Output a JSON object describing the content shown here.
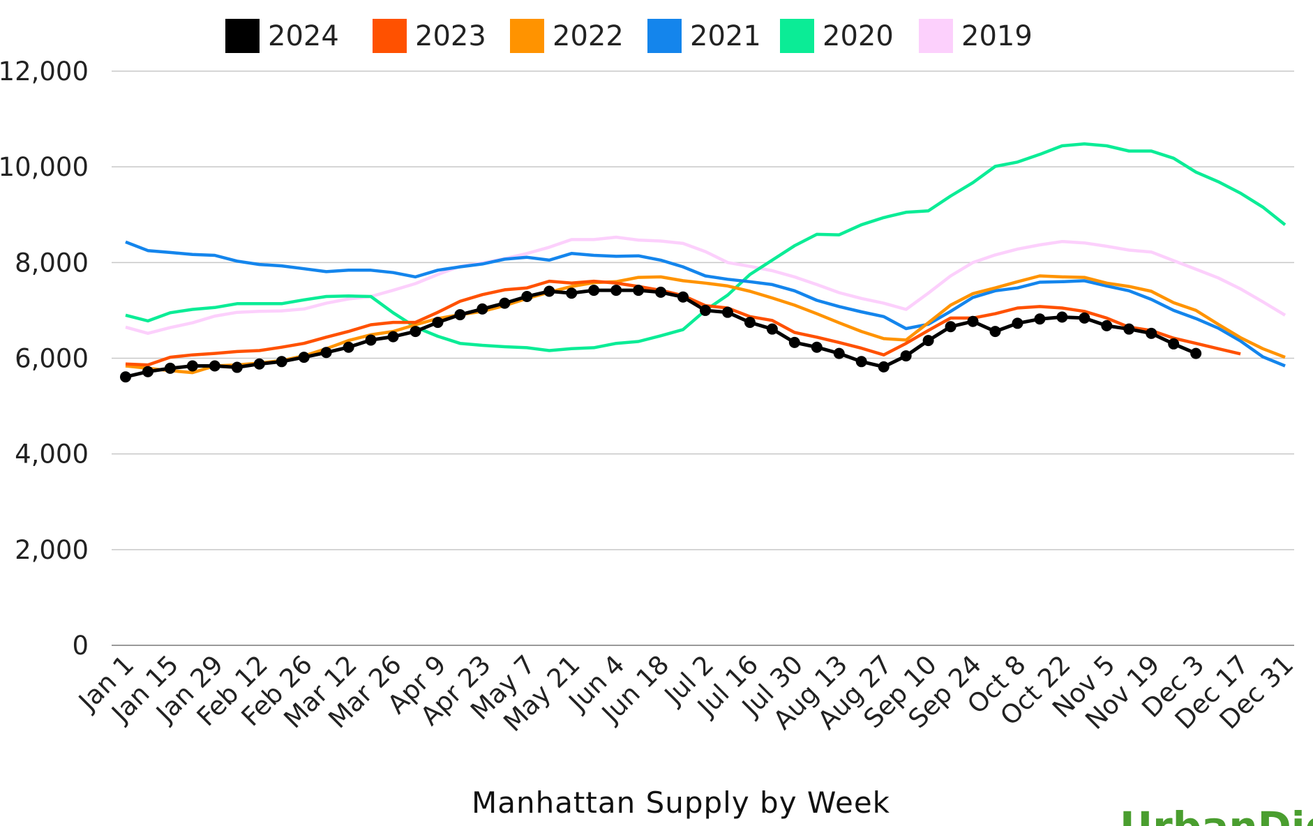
{
  "chart_data": {
    "type": "line",
    "title": "Manhattan Supply by Week",
    "xlabel": "",
    "ylabel": "",
    "ylim": [
      0,
      12000
    ],
    "yticks": [
      0,
      2000,
      4000,
      6000,
      8000,
      10000,
      12000
    ],
    "ytick_labels": [
      "0",
      "2,000",
      "4,000",
      "6,000",
      "8,000",
      "10,000",
      "12,000"
    ],
    "grid": "horizontal",
    "legend_position": "top",
    "x_tick_labels": [
      "Jan 1",
      "Jan 15",
      "Jan 29",
      "Feb 12",
      "Feb 26",
      "Mar 12",
      "Mar 26",
      "Apr 9",
      "Apr 23",
      "May 7",
      "May 21",
      "Jun 4",
      "Jun 18",
      "Jul 2",
      "Jul 16",
      "Jul 30",
      "Aug 13",
      "Aug 27",
      "Sep 10",
      "Sep 24",
      "Oct 8",
      "Oct 22",
      "Nov 5",
      "Nov 19",
      "Dec 3",
      "Dec 17",
      "Dec 31"
    ],
    "x_note_weekly": "weekly points starting Jan 1",
    "series": [
      {
        "name": "2019",
        "color": "#fcd0fc",
        "markers": false,
        "values": [
          6650,
          6520,
          6640,
          6740,
          6880,
          6960,
          6980,
          6990,
          7030,
          7150,
          7240,
          7290,
          7420,
          7560,
          7750,
          7920,
          7990,
          8080,
          8190,
          8320,
          8480,
          8480,
          8530,
          8470,
          8450,
          8400,
          8230,
          8000,
          7920,
          7830,
          7700,
          7540,
          7370,
          7250,
          7150,
          7020,
          7360,
          7720,
          8000,
          8160,
          8280,
          8370,
          8440,
          8410,
          8340,
          8260,
          8220,
          8040,
          7860,
          7680,
          7450,
          7180,
          6900
        ]
      },
      {
        "name": "2020",
        "color": "#0bec96",
        "markers": false,
        "values": [
          6900,
          6780,
          6950,
          7020,
          7060,
          7140,
          7140,
          7140,
          7220,
          7290,
          7300,
          7290,
          6950,
          6650,
          6460,
          6310,
          6270,
          6240,
          6220,
          6160,
          6200,
          6220,
          6310,
          6350,
          6470,
          6600,
          7000,
          7320,
          7750,
          8050,
          8350,
          8590,
          8580,
          8790,
          8940,
          9050,
          9080,
          9390,
          9670,
          10010,
          10100,
          10260,
          10440,
          10480,
          10440,
          10330,
          10330,
          10180,
          9890,
          9690,
          9450,
          9160,
          8790
        ]
      },
      {
        "name": "2021",
        "color": "#1485ec",
        "markers": false,
        "values": [
          8430,
          8250,
          8210,
          8170,
          8150,
          8030,
          7960,
          7930,
          7870,
          7810,
          7840,
          7840,
          7790,
          7700,
          7840,
          7910,
          7970,
          8070,
          8110,
          8050,
          8190,
          8150,
          8130,
          8140,
          8050,
          7910,
          7720,
          7650,
          7600,
          7540,
          7410,
          7210,
          7080,
          6970,
          6870,
          6620,
          6710,
          6980,
          7270,
          7410,
          7470,
          7590,
          7600,
          7620,
          7510,
          7410,
          7230,
          7000,
          6830,
          6630,
          6360,
          6030,
          5840
        ]
      },
      {
        "name": "2022",
        "color": "#ff9300",
        "markers": false,
        "values": [
          5840,
          5790,
          5740,
          5700,
          5840,
          5860,
          5900,
          5950,
          6050,
          6200,
          6370,
          6490,
          6560,
          6700,
          6830,
          6910,
          6980,
          7100,
          7250,
          7380,
          7500,
          7580,
          7600,
          7690,
          7700,
          7620,
          7570,
          7510,
          7400,
          7260,
          7110,
          6930,
          6740,
          6560,
          6410,
          6380,
          6740,
          7110,
          7350,
          7470,
          7600,
          7720,
          7700,
          7690,
          7570,
          7500,
          7400,
          7160,
          7000,
          6710,
          6430,
          6200,
          6020
        ]
      },
      {
        "name": "2023",
        "color": "#ff5100",
        "markers": false,
        "values": [
          5880,
          5860,
          6020,
          6070,
          6100,
          6140,
          6160,
          6230,
          6310,
          6440,
          6560,
          6700,
          6750,
          6750,
          6960,
          7190,
          7330,
          7430,
          7470,
          7610,
          7570,
          7610,
          7570,
          7500,
          7420,
          7310,
          7100,
          7050,
          6870,
          6790,
          6540,
          6440,
          6330,
          6210,
          6070,
          6310,
          6580,
          6840,
          6840,
          6930,
          7050,
          7080,
          7050,
          6980,
          6840,
          6650,
          6580,
          6420,
          6310,
          6200,
          6090
        ]
      },
      {
        "name": "2024",
        "color": "#000000",
        "markers": true,
        "values": [
          5610,
          5720,
          5790,
          5840,
          5840,
          5810,
          5880,
          5930,
          6020,
          6120,
          6230,
          6380,
          6450,
          6560,
          6750,
          6910,
          7030,
          7150,
          7290,
          7400,
          7360,
          7420,
          7420,
          7420,
          7380,
          7280,
          7000,
          6960,
          6750,
          6610,
          6330,
          6230,
          6100,
          5930,
          5820,
          6050,
          6370,
          6660,
          6770,
          6560,
          6730,
          6820,
          6860,
          6840,
          6680,
          6610,
          6520,
          6300,
          6100
        ]
      }
    ],
    "legend_order": [
      "2024",
      "2023",
      "2022",
      "2021",
      "2020",
      "2019"
    ]
  },
  "logo_text": "UrbanDigs"
}
